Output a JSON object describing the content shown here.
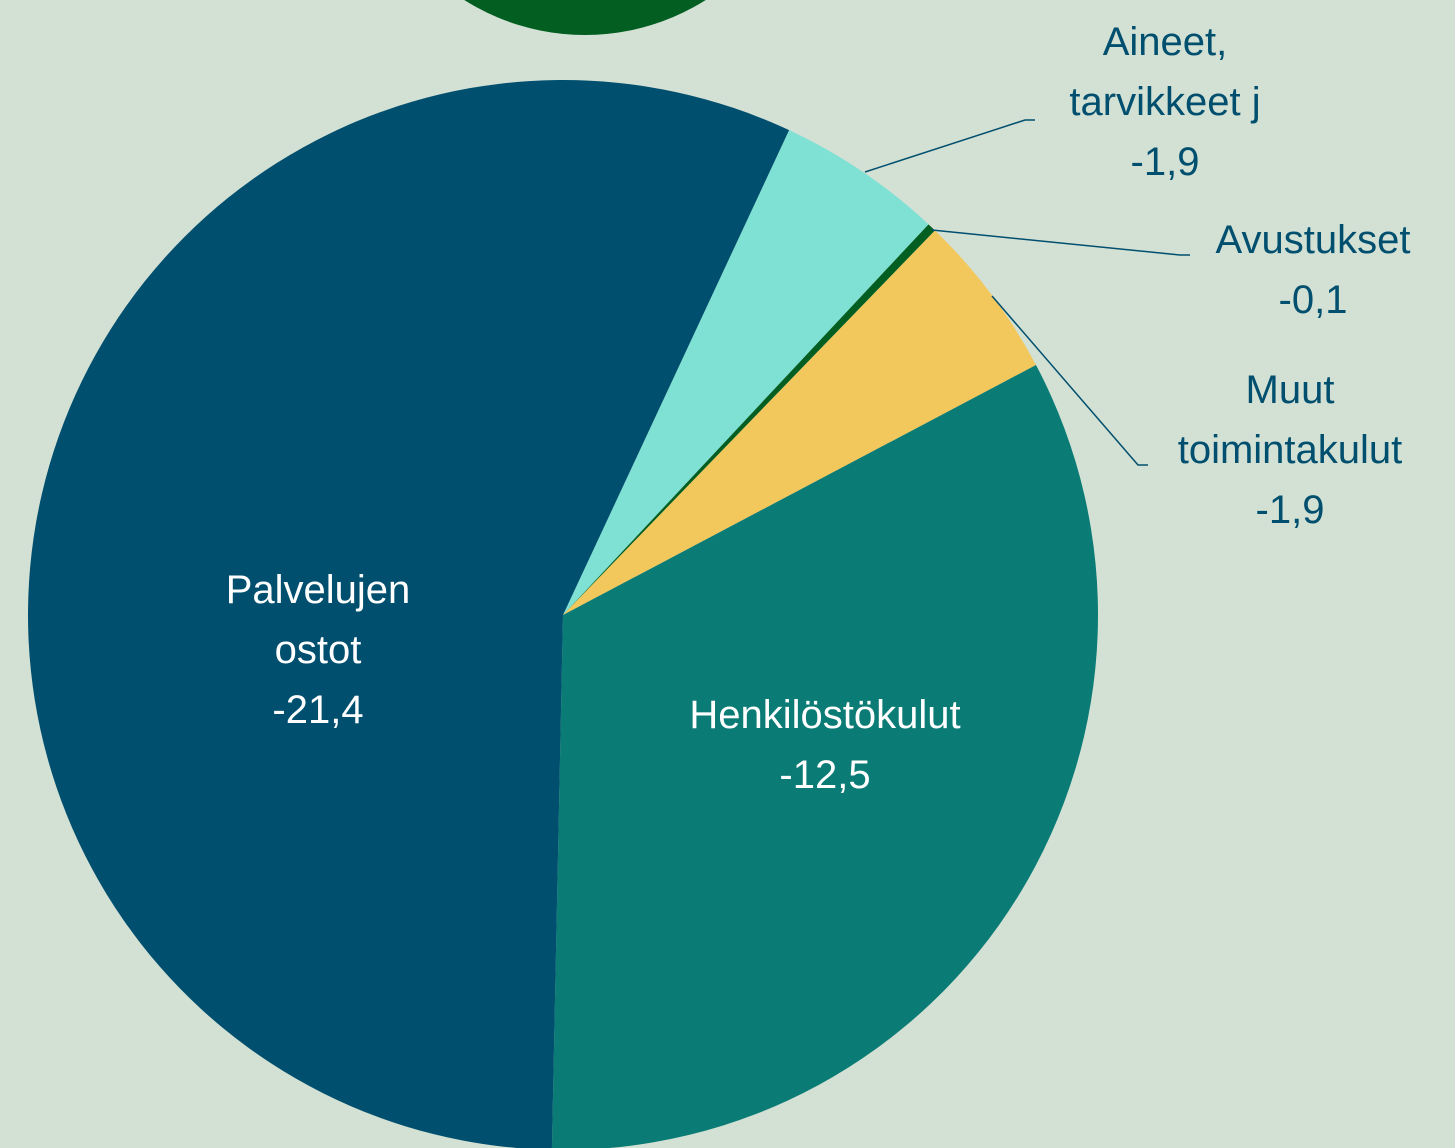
{
  "chart_data": {
    "type": "pie",
    "categories": [
      "Aineet, tarvikkeet j",
      "Avustukset",
      "Muut toimintakulut",
      "Henkilöstökulut",
      "Palvelujen ostot"
    ],
    "values": [
      -1.9,
      -0.1,
      -1.9,
      -12.5,
      -21.4
    ],
    "value_labels": [
      "-1,9",
      "-0,1",
      "-1,9",
      "-12,5",
      "-21,4"
    ],
    "colors": [
      "#7fe0d4",
      "#035e22",
      "#f2c75c",
      "#0a7b75",
      "#004f6e"
    ]
  }
}
